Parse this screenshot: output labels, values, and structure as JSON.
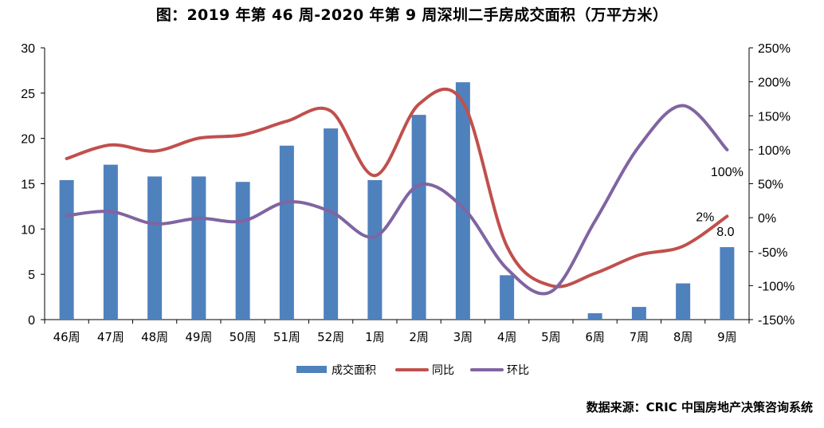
{
  "chart_data": {
    "type": "bar",
    "title": "图：2019 年第 46 周-2020 年第 9 周深圳二手房成交面积（万平方米）",
    "source": "数据来源：CRIC 中国房地产决策咨询系统",
    "categories": [
      "46周",
      "47周",
      "48周",
      "49周",
      "50周",
      "51周",
      "52周",
      "1周",
      "2周",
      "3周",
      "4周",
      "5周",
      "6周",
      "7周",
      "8周",
      "9周"
    ],
    "series": [
      {
        "name": "成交面积",
        "type": "bar",
        "axis": "left",
        "color": "#4F81BD",
        "values": [
          15.4,
          17.1,
          15.8,
          15.8,
          15.2,
          19.2,
          21.1,
          15.4,
          22.6,
          26.2,
          4.9,
          0,
          0.7,
          1.4,
          4.0,
          8.0
        ]
      },
      {
        "name": "同比",
        "type": "line",
        "axis": "right",
        "color": "#C0504D",
        "values": [
          87,
          107,
          98,
          117,
          122,
          142,
          157,
          62,
          167,
          170,
          -42,
          -100,
          -82,
          -55,
          -42,
          2
        ]
      },
      {
        "name": "环比",
        "type": "line",
        "axis": "right",
        "color": "#8064A2",
        "values": [
          3,
          9,
          -9,
          -1,
          -5,
          23,
          9,
          -28,
          48,
          15,
          -75,
          -109,
          -5,
          105,
          165,
          100
        ]
      }
    ],
    "y_left": {
      "min": 0,
      "max": 30,
      "step": 5,
      "ticks": [
        "0",
        "5",
        "10",
        "15",
        "20",
        "25",
        "30"
      ]
    },
    "y_right": {
      "min": -150,
      "max": 250,
      "step": 50,
      "ticks": [
        "-150%",
        "-100%",
        "-50%",
        "0%",
        "50%",
        "100%",
        "150%",
        "200%",
        "250%"
      ]
    },
    "data_labels": [
      {
        "series": "成交面积",
        "category": "9周",
        "text": "8.0"
      },
      {
        "series": "同比",
        "category": "9周",
        "text": "2%"
      },
      {
        "series": "环比",
        "category": "9周",
        "text": "100%"
      }
    ],
    "legend_position": "bottom",
    "grid": false
  }
}
